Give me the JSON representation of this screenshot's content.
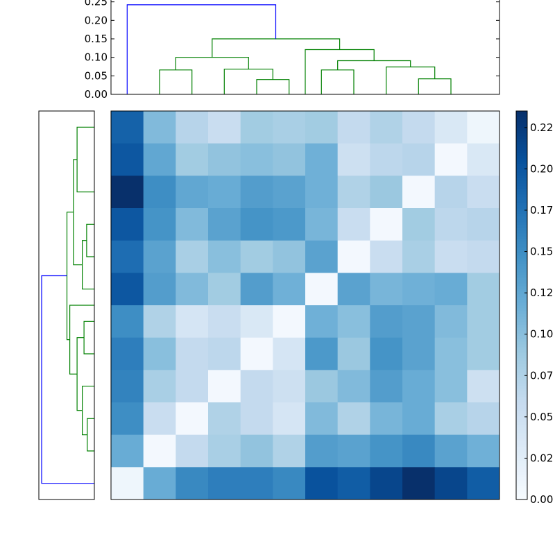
{
  "chart_data": [
    {
      "type": "dendrogram",
      "orientation": "top",
      "yticks": [
        "0.00",
        "0.05",
        "0.10",
        "0.15",
        "0.20",
        "0.25"
      ],
      "ylim": [
        0,
        0.255
      ],
      "colors": {
        "root": "#0000ff",
        "cluster": "#008000"
      },
      "merges": [
        {
          "x": [
            1.5,
            1.5,
            2.5,
            2.5
          ],
          "y": [
            0,
            0.066,
            0.066,
            0
          ],
          "c": "cluster"
        },
        {
          "x": [
            4.5,
            4.5,
            5.5,
            5.5
          ],
          "y": [
            0,
            0.04,
            0.04,
            0
          ],
          "c": "cluster"
        },
        {
          "x": [
            3.5,
            3.5,
            5.0,
            5.0
          ],
          "y": [
            0,
            0.068,
            0.068,
            0.04
          ],
          "c": "cluster"
        },
        {
          "x": [
            2.0,
            2.0,
            4.25,
            4.25
          ],
          "y": [
            0.066,
            0.1,
            0.1,
            0.068
          ],
          "c": "cluster"
        },
        {
          "x": [
            6.5,
            6.5,
            7.5,
            7.5
          ],
          "y": [
            0,
            0.066,
            0.066,
            0
          ],
          "c": "cluster"
        },
        {
          "x": [
            9.5,
            9.5,
            10.5,
            10.5
          ],
          "y": [
            0,
            0.042,
            0.042,
            0
          ],
          "c": "cluster"
        },
        {
          "x": [
            8.5,
            8.5,
            10.0,
            10.0
          ],
          "y": [
            0,
            0.074,
            0.074,
            0.042
          ],
          "c": "cluster"
        },
        {
          "x": [
            7.0,
            7.0,
            9.25,
            9.25
          ],
          "y": [
            0.066,
            0.091,
            0.091,
            0.074
          ],
          "c": "cluster"
        },
        {
          "x": [
            6.0,
            6.0,
            8.125,
            8.125
          ],
          "y": [
            0,
            0.121,
            0.121,
            0.091
          ],
          "c": "cluster"
        },
        {
          "x": [
            3.125,
            3.125,
            7.0625,
            7.0625
          ],
          "y": [
            0.1,
            0.15,
            0.15,
            0.121
          ],
          "c": "cluster"
        },
        {
          "x": [
            0.5,
            0.5,
            5.09,
            5.09
          ],
          "y": [
            0,
            0.242,
            0.242,
            0.15
          ],
          "c": "root"
        }
      ]
    },
    {
      "type": "dendrogram",
      "orientation": "left",
      "colors": {
        "root": "#0000ff",
        "cluster": "#008000"
      },
      "merges": [
        {
          "x": [
            0,
            0.09,
            0.09,
            0
          ],
          "y": [
            0.5,
            0.5,
            2.5,
            2.5
          ],
          "c": "cluster"
        },
        {
          "x": [
            0,
            0.04,
            0.04,
            0
          ],
          "y": [
            3.5,
            3.5,
            4.5,
            4.5
          ],
          "c": "cluster"
        },
        {
          "x": [
            0,
            0.063,
            0.063,
            0.04
          ],
          "y": [
            5.5,
            5.5,
            4.0,
            4.0
          ],
          "c": "cluster"
        },
        {
          "x": [
            0.09,
            0.109,
            0.109,
            0.063
          ],
          "y": [
            1.5,
            1.5,
            4.75,
            4.75
          ],
          "c": "cluster"
        },
        {
          "x": [
            0,
            0.054,
            0.054,
            0
          ],
          "y": [
            6.5,
            6.5,
            7.5,
            7.5
          ],
          "c": "cluster"
        },
        {
          "x": [
            0,
            0.037,
            0.037,
            0
          ],
          "y": [
            9.5,
            9.5,
            10.5,
            10.5
          ],
          "c": "cluster"
        },
        {
          "x": [
            0,
            0.063,
            0.063,
            0.037
          ],
          "y": [
            8.5,
            8.5,
            10.0,
            10.0
          ],
          "c": "cluster"
        },
        {
          "x": [
            0.054,
            0.09,
            0.09,
            0.063
          ],
          "y": [
            7.0,
            7.0,
            9.25,
            9.25
          ],
          "c": "cluster"
        },
        {
          "x": [
            0,
            0.128,
            0.128,
            0.09
          ],
          "y": [
            6.0,
            6.0,
            8.125,
            8.125
          ],
          "c": "cluster"
        },
        {
          "x": [
            0.109,
            0.143,
            0.143,
            0.128
          ],
          "y": [
            3.125,
            3.125,
            7.0625,
            7.0625
          ],
          "c": "cluster"
        },
        {
          "x": [
            0,
            0.275,
            0.275,
            0.143
          ],
          "y": [
            11.5,
            11.5,
            5.09,
            5.09
          ],
          "c": "root"
        }
      ]
    },
    {
      "type": "heatmap",
      "colormap": "Blues",
      "vmin": 0,
      "vmax": 0.235,
      "values": [
        [
          0.19,
          0.105,
          0.07,
          0.055,
          0.085,
          0.08,
          0.085,
          0.06,
          0.075,
          0.06,
          0.035,
          0.01
        ],
        [
          0.2,
          0.125,
          0.085,
          0.095,
          0.1,
          0.095,
          0.115,
          0.05,
          0.065,
          0.07,
          0.005,
          0.035
        ],
        [
          0.235,
          0.15,
          0.125,
          0.12,
          0.135,
          0.13,
          0.115,
          0.075,
          0.09,
          0.005,
          0.07,
          0.055
        ],
        [
          0.2,
          0.145,
          0.105,
          0.13,
          0.145,
          0.14,
          0.11,
          0.055,
          0.005,
          0.085,
          0.065,
          0.07
        ],
        [
          0.18,
          0.13,
          0.08,
          0.1,
          0.085,
          0.095,
          0.13,
          0.005,
          0.055,
          0.08,
          0.055,
          0.06
        ],
        [
          0.2,
          0.135,
          0.105,
          0.085,
          0.135,
          0.115,
          0.005,
          0.13,
          0.11,
          0.115,
          0.12,
          0.085
        ],
        [
          0.15,
          0.075,
          0.04,
          0.055,
          0.035,
          0.005,
          0.115,
          0.1,
          0.135,
          0.13,
          0.105,
          0.085
        ],
        [
          0.165,
          0.1,
          0.06,
          0.065,
          0.005,
          0.04,
          0.14,
          0.09,
          0.145,
          0.13,
          0.1,
          0.085
        ],
        [
          0.16,
          0.08,
          0.06,
          0.005,
          0.06,
          0.05,
          0.09,
          0.105,
          0.135,
          0.12,
          0.1,
          0.05
        ],
        [
          0.15,
          0.055,
          0.005,
          0.075,
          0.06,
          0.04,
          0.105,
          0.075,
          0.11,
          0.12,
          0.08,
          0.07
        ],
        [
          0.12,
          0.005,
          0.06,
          0.08,
          0.095,
          0.075,
          0.135,
          0.13,
          0.145,
          0.155,
          0.13,
          0.115
        ],
        [
          0.01,
          0.12,
          0.155,
          0.165,
          0.165,
          0.155,
          0.205,
          0.195,
          0.215,
          0.235,
          0.215,
          0.195
        ]
      ]
    },
    {
      "type": "colorbar",
      "colormap": "Blues",
      "vmin": 0,
      "vmax": 0.235,
      "ticks": [
        0.0,
        0.025,
        0.05,
        0.075,
        0.1,
        0.125,
        0.15,
        0.175,
        0.2,
        0.225
      ],
      "tick_labels": [
        "0.00",
        "0.02",
        "0.05",
        "0.07",
        "0.10",
        "0.12",
        "0.15",
        "0.17",
        "0.20",
        "0.22"
      ]
    }
  ]
}
